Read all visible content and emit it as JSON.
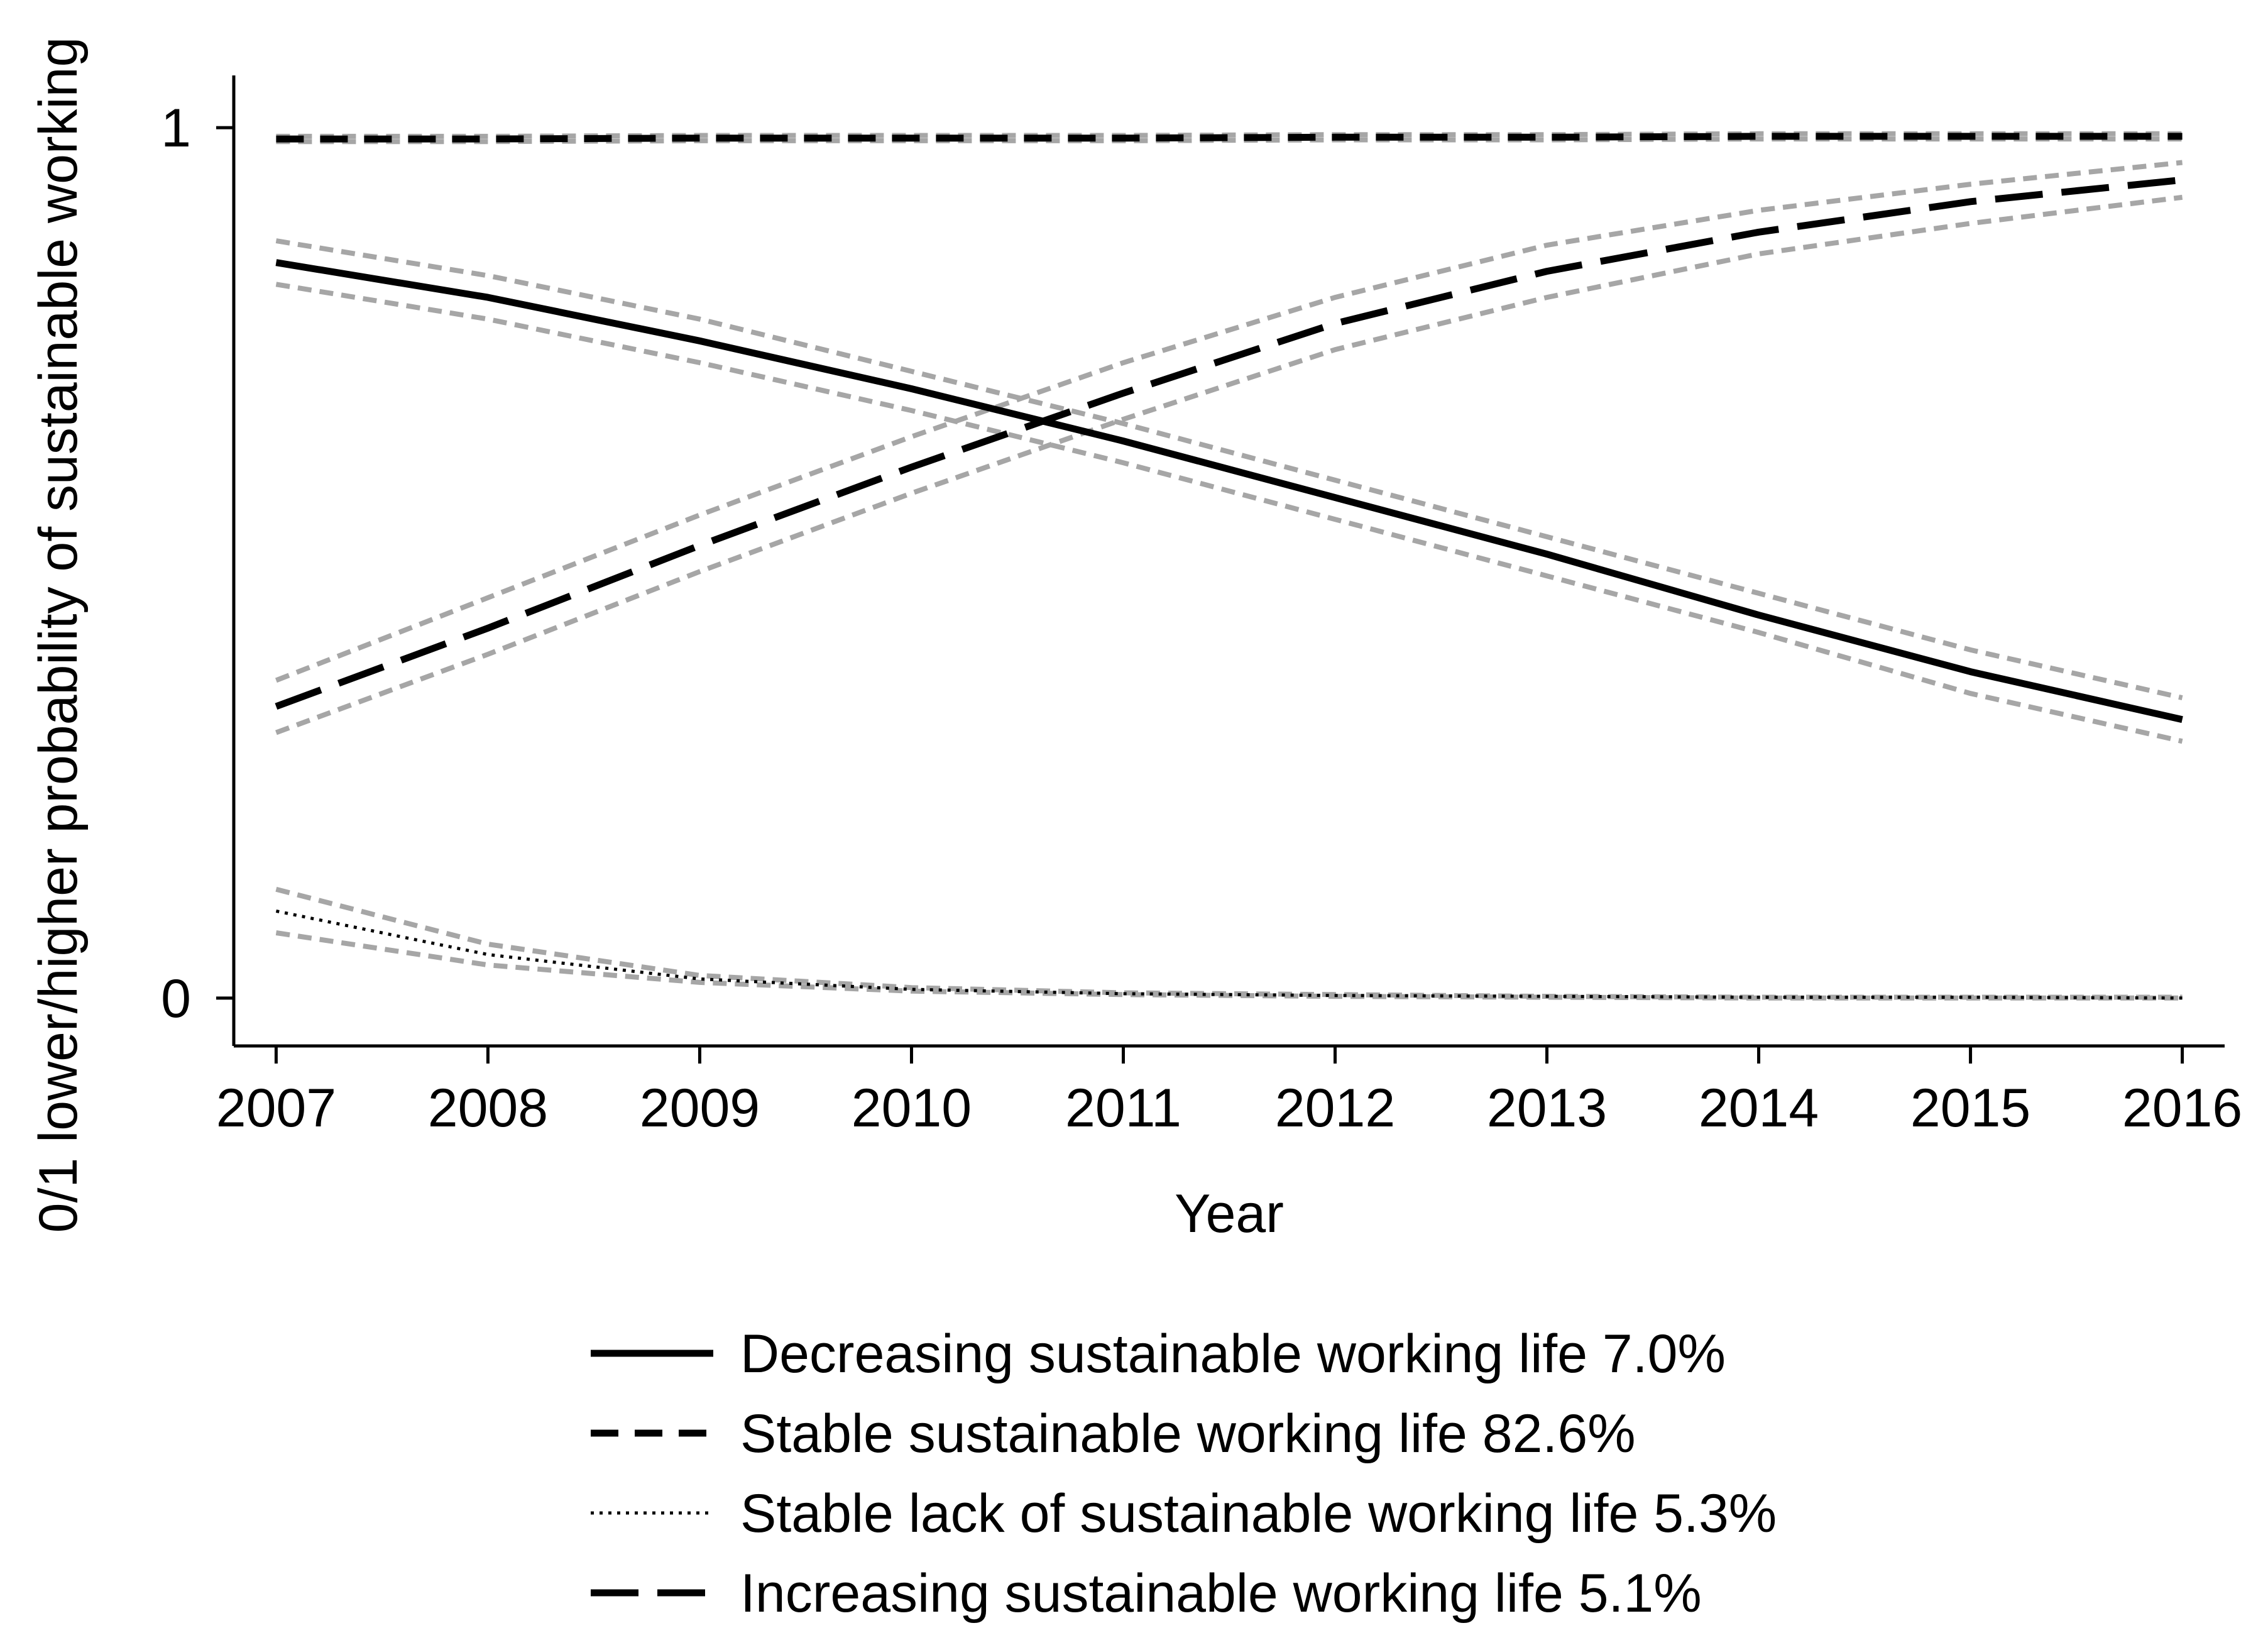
{
  "chart_data": {
    "type": "line",
    "title": "",
    "xlabel": "Year",
    "ylabel": "0/1 lower/higher probability of sustainable working",
    "x": [
      2007,
      2008,
      2009,
      2010,
      2011,
      2012,
      2013,
      2014,
      2015,
      2016
    ],
    "xticks": [
      "2007",
      "2008",
      "2009",
      "2010",
      "2011",
      "2012",
      "2013",
      "2014",
      "2015",
      "2016"
    ],
    "yticks": [
      {
        "value": 0,
        "label": "0"
      },
      {
        "value": 1,
        "label": "1"
      }
    ],
    "xlim": [
      2006.8,
      2016.2
    ],
    "ylim": [
      -0.055,
      1.06
    ],
    "grid": false,
    "legend_position": "bottom",
    "series": [
      {
        "name": "Decreasing sustainable working life 7.0%",
        "style": "solid",
        "values": [
          0.845,
          0.805,
          0.755,
          0.7,
          0.64,
          0.575,
          0.51,
          0.44,
          0.375,
          0.32
        ],
        "ci_upper": [
          0.87,
          0.83,
          0.78,
          0.72,
          0.66,
          0.595,
          0.53,
          0.465,
          0.4,
          0.345
        ],
        "ci_lower": [
          0.82,
          0.78,
          0.73,
          0.675,
          0.615,
          0.55,
          0.485,
          0.42,
          0.35,
          0.295
        ]
      },
      {
        "name": "Stable sustainable working life 82.6%",
        "style": "dashed",
        "values": [
          0.987,
          0.987,
          0.988,
          0.988,
          0.988,
          0.989,
          0.989,
          0.99,
          0.99,
          0.99
        ],
        "ci_upper": [
          0.99,
          0.99,
          0.991,
          0.991,
          0.991,
          0.992,
          0.992,
          0.993,
          0.993,
          0.993
        ],
        "ci_lower": [
          0.984,
          0.984,
          0.985,
          0.985,
          0.985,
          0.986,
          0.986,
          0.987,
          0.987,
          0.987
        ]
      },
      {
        "name": "Stable lack of sustainable working life 5.3%",
        "style": "dotted",
        "values": [
          0.1,
          0.05,
          0.022,
          0.01,
          0.005,
          0.003,
          0.002,
          0.001,
          0.001,
          0.0
        ],
        "ci_upper": [
          0.125,
          0.062,
          0.026,
          0.012,
          0.006,
          0.004,
          0.002,
          0.001,
          0.001,
          0.001
        ],
        "ci_lower": [
          0.075,
          0.038,
          0.018,
          0.008,
          0.004,
          0.002,
          0.001,
          0.0,
          0.0,
          0.0
        ]
      },
      {
        "name": "Increasing sustainable working life 5.1%",
        "style": "longdash",
        "values": [
          0.335,
          0.425,
          0.52,
          0.61,
          0.695,
          0.775,
          0.835,
          0.88,
          0.915,
          0.94
        ],
        "ci_upper": [
          0.365,
          0.46,
          0.555,
          0.645,
          0.73,
          0.805,
          0.865,
          0.905,
          0.935,
          0.96
        ],
        "ci_lower": [
          0.305,
          0.395,
          0.49,
          0.58,
          0.665,
          0.745,
          0.805,
          0.855,
          0.89,
          0.92
        ]
      }
    ]
  },
  "colors": {
    "line": "#000000",
    "ci": "#a6a6a6",
    "background": "#ffffff"
  }
}
